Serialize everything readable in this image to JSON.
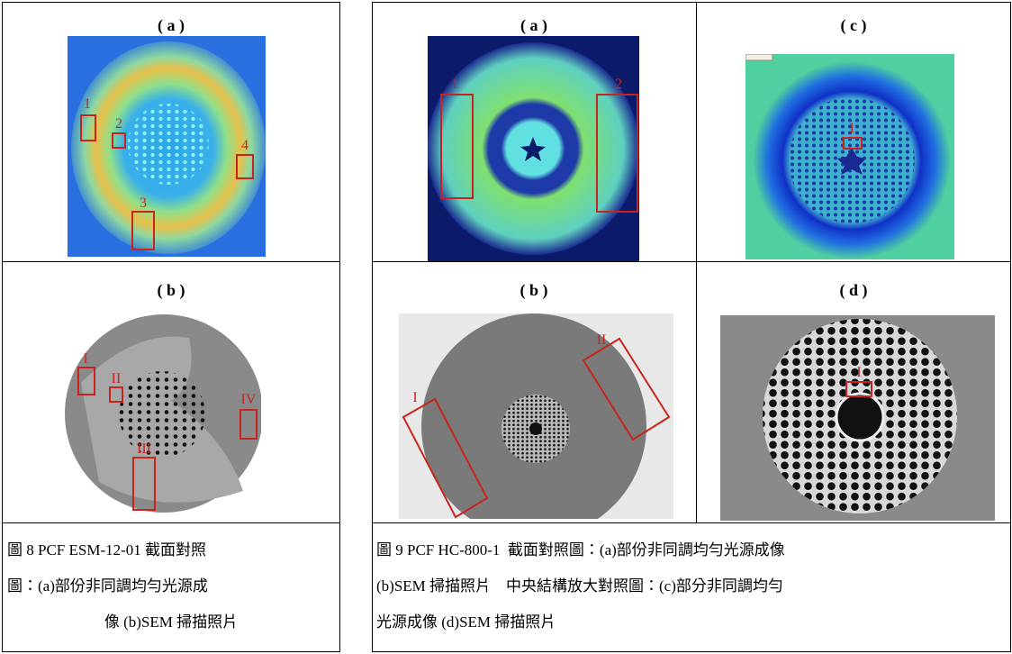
{
  "figure_8": {
    "panels": [
      {
        "label": "( a )",
        "markers": [
          "1",
          "2",
          "3",
          "4"
        ]
      },
      {
        "label": "( b )",
        "markers": [
          "I",
          "II",
          "III",
          "IV"
        ]
      }
    ],
    "caption": [
      "圖 8 PCF ESM-12-01 截面對照",
      "圖：(a)部份非同調均勻光源成",
      "像 (b)SEM 掃描照片"
    ]
  },
  "figure_9": {
    "panels": [
      {
        "label": "( a )",
        "markers": [
          "1",
          "2"
        ]
      },
      {
        "label": "( c )",
        "markers": [
          "1"
        ]
      },
      {
        "label": "( b )",
        "markers": [
          "I",
          "II"
        ]
      },
      {
        "label": "( d )",
        "markers": [
          "I"
        ]
      }
    ],
    "caption": [
      "圖 9 PCF HC-800-1  截面對照圖：(a)部份非同調均勻光源成像",
      "(b)SEM 掃描照片　中央結構放大對照圖：(c)部分非同調均勻",
      "光源成像 (d)SEM 掃描照片"
    ]
  }
}
